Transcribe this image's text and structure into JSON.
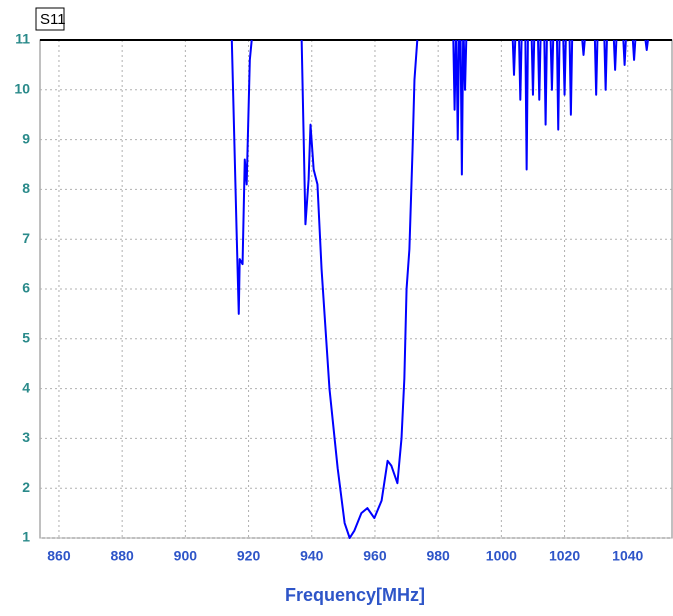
{
  "chart_data": {
    "type": "line",
    "title": "S11",
    "x_label": "Frequency[MHz]",
    "xlim": [
      854,
      1054
    ],
    "ylim": [
      1,
      11
    ],
    "xticks": [
      860,
      880,
      900,
      920,
      940,
      960,
      980,
      1000,
      1020,
      1040
    ],
    "yticks": [
      1,
      2,
      3,
      4,
      5,
      6,
      7,
      8,
      9,
      10,
      11
    ],
    "grid": true,
    "x": [
      914.7,
      916.2,
      916.9,
      917.2,
      918.1,
      918.8,
      919.4,
      920.4,
      921.0,
      925,
      936.8,
      938.0,
      939.0,
      939.6,
      940.6,
      941.8,
      943.1,
      945.6,
      948.2,
      950.4,
      952.0,
      953.5,
      955.7,
      957.6,
      959.8,
      962.1,
      964.0,
      965.2,
      967.1,
      968.4,
      969.3,
      970.0,
      970.9,
      971.9,
      972.5,
      973.4,
      978,
      984.8,
      985.2,
      985.6,
      985.7,
      985.8,
      986.2,
      986.6,
      986.7,
      987.1,
      987.5,
      987.9,
      988.0,
      988.1,
      988.5,
      988.9,
      989.0,
      1003.6,
      1004,
      1004.4,
      1004.5,
      1005.6,
      1006,
      1006.4,
      1006.5,
      1007.6,
      1008,
      1008.4,
      1008.5,
      1009.6,
      1010,
      1010.4,
      1010.5,
      1011.6,
      1012,
      1012.4,
      1012.5,
      1013.6,
      1014,
      1014.4,
      1014.5,
      1015.6,
      1016,
      1016.4,
      1016.5,
      1017.6,
      1018,
      1018.4,
      1018.5,
      1019.6,
      1020,
      1020.4,
      1020.5,
      1021.6,
      1022,
      1022.4,
      1022.5,
      1025.6,
      1026,
      1026.4,
      1026.5,
      1029.6,
      1030,
      1030.4,
      1030.5,
      1032.6,
      1033,
      1033.4,
      1033.5,
      1035.6,
      1036,
      1036.4,
      1036.5,
      1038.6,
      1039,
      1039.4,
      1039.5,
      1041.6,
      1042,
      1042.4,
      1042.5,
      1045.6,
      1046,
      1046.4
    ],
    "series": [
      {
        "name": "S11",
        "color": "#0000ff",
        "values": [
          11,
          7.2,
          5.5,
          6.6,
          6.5,
          8.6,
          8.1,
          10.6,
          11,
          null,
          11,
          7.3,
          8.2,
          9.3,
          8.4,
          8.1,
          6.4,
          4.0,
          2.4,
          1.3,
          1.0,
          1.15,
          1.5,
          1.6,
          1.4,
          1.75,
          2.55,
          2.45,
          2.1,
          3.0,
          4.2,
          6.0,
          6.8,
          8.8,
          10.2,
          11,
          null,
          11,
          9.6,
          11,
          null,
          11,
          9.0,
          11,
          null,
          11,
          8.3,
          11,
          null,
          11,
          10.0,
          11,
          null,
          11,
          10.3,
          11,
          null,
          11,
          9.8,
          11,
          null,
          11,
          8.4,
          11,
          null,
          11,
          9.9,
          11,
          null,
          11,
          9.8,
          11,
          null,
          11,
          9.3,
          11,
          null,
          11,
          10.0,
          11,
          null,
          11,
          9.2,
          11,
          null,
          11,
          9.9,
          11,
          null,
          11,
          9.5,
          11,
          null,
          11,
          10.7,
          11,
          null,
          11,
          9.9,
          11,
          null,
          11,
          10.0,
          11,
          null,
          11,
          10.4,
          11,
          null,
          11,
          10.5,
          11,
          null,
          11,
          10.6,
          11,
          null,
          11,
          10.8,
          11
        ]
      }
    ]
  }
}
